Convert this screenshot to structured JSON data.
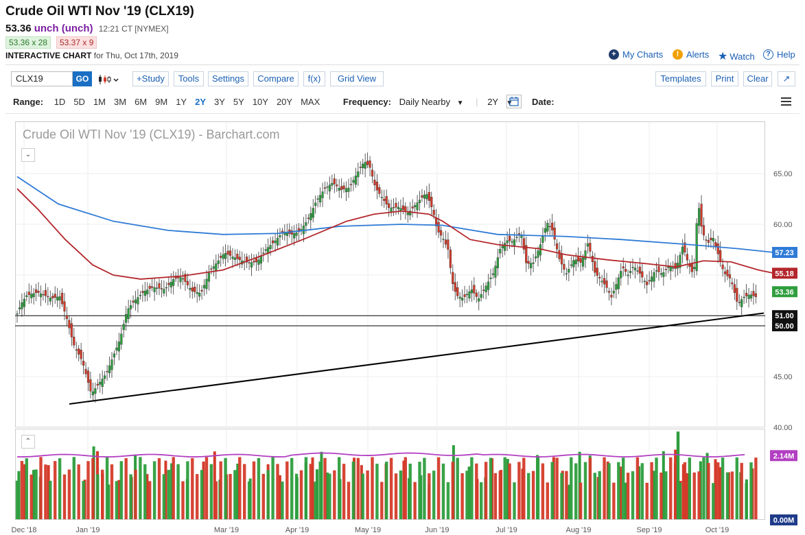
{
  "header": {
    "title": "Crude Oil WTI Nov '19 (CLX19)",
    "price": "53.36",
    "change": "unch (unch)",
    "time": "12:21 CT [NYMEX]",
    "bid": "53.36 x 28",
    "ask": "53.37 x 9",
    "chart_label": "INTERACTIVE CHART",
    "chart_date": "for Thu, Oct 17th, 2019"
  },
  "top_links": {
    "my_charts": "My Charts",
    "alerts": "Alerts",
    "watch": "Watch",
    "help": "Help"
  },
  "toolbar": {
    "symbol_value": "CLX19",
    "go": "GO",
    "study": "+Study",
    "tools": "Tools",
    "settings": "Settings",
    "compare": "Compare",
    "fx": "f(x)",
    "grid_view": "Grid View",
    "templates": "Templates",
    "print": "Print",
    "clear": "Clear"
  },
  "range_bar": {
    "range_label": "Range:",
    "ranges": [
      "1D",
      "5D",
      "1M",
      "3M",
      "6M",
      "9M",
      "1Y",
      "2Y",
      "3Y",
      "5Y",
      "10Y",
      "20Y",
      "MAX"
    ],
    "selected_range": "2Y",
    "frequency_label": "Frequency:",
    "frequency_value": "Daily Nearby",
    "period_value": "2Y",
    "date_label": "Date:"
  },
  "chart_data": {
    "type": "candlestick",
    "title": "Crude Oil WTI Nov '19 (CLX19) - Barchart.com",
    "x_ticks": [
      "Dec '18",
      "Jan '19",
      "Mar '19",
      "Apr '19",
      "May '19",
      "Jun '19",
      "Jul '19",
      "Aug '19",
      "Sep '19",
      "Oct '19"
    ],
    "y_ticks": [
      "65.00",
      "60.00",
      "55.00",
      "50.00",
      "45.00",
      "40.00"
    ],
    "ylim": [
      40,
      67.5
    ],
    "last_price": "53.36",
    "ma_short_label": "55.18",
    "ma_long_label": "57.23",
    "hlines": [
      {
        "label": "51.00",
        "value": 51.0
      },
      {
        "label": "50.00",
        "value": 50.0
      }
    ],
    "trendline": {
      "start": {
        "x": "Dec 27 2018",
        "y": 42.3
      },
      "end": {
        "x": "Oct 17 2019",
        "y": 51.25
      }
    },
    "colors": {
      "up": "#2e9e3e",
      "down": "#d43b2a",
      "ma_short": "#b3262b",
      "ma_long": "#2f7bd6",
      "volume_avg": "#b23fc2",
      "line": "#000000"
    },
    "ma_long_series": [
      [
        0,
        64.7
      ],
      [
        60,
        62.0
      ],
      [
        140,
        60.3
      ],
      [
        220,
        59.4
      ],
      [
        300,
        59.0
      ],
      [
        380,
        59.1
      ],
      [
        470,
        59.8
      ],
      [
        560,
        60.0
      ],
      [
        620,
        59.9
      ],
      [
        700,
        59.0
      ],
      [
        800,
        58.8
      ],
      [
        880,
        58.5
      ],
      [
        980,
        58.0
      ],
      [
        1050,
        57.6
      ],
      [
        1103,
        57.23
      ]
    ],
    "ma_short_series": [
      [
        0,
        63.5
      ],
      [
        30,
        61.5
      ],
      [
        70,
        58.5
      ],
      [
        110,
        56.0
      ],
      [
        140,
        55.0
      ],
      [
        180,
        54.6
      ],
      [
        240,
        54.9
      ],
      [
        300,
        55.5
      ],
      [
        360,
        57.0
      ],
      [
        420,
        58.6
      ],
      [
        480,
        60.3
      ],
      [
        520,
        61.0
      ],
      [
        560,
        61.3
      ],
      [
        600,
        61.0
      ],
      [
        620,
        60.3
      ],
      [
        660,
        58.5
      ],
      [
        700,
        58.0
      ],
      [
        760,
        57.6
      ],
      [
        800,
        57.0
      ],
      [
        860,
        56.5
      ],
      [
        920,
        56.1
      ],
      [
        960,
        55.8
      ],
      [
        1000,
        56.4
      ],
      [
        1040,
        56.3
      ],
      [
        1080,
        55.5
      ],
      [
        1103,
        55.18
      ]
    ],
    "volume": {
      "avg_label": "2.14M",
      "min_label": "0.00M",
      "avg_value": 2.14
    },
    "volume_bars": [
      {
        "pos": 0.995,
        "dir": "up",
        "vol": 1.62
      },
      {
        "pos": 0.987,
        "dir": "down",
        "vol": 1.85
      },
      {
        "pos": 0.975,
        "dir": "up",
        "vol": 1.66
      },
      {
        "pos": 0.966,
        "dir": "up",
        "vol": 1.43
      },
      {
        "pos": 0.955,
        "dir": "down",
        "vol": 1.82
      },
      {
        "pos": 0.906,
        "dir": "down",
        "vol": 1.33
      },
      {
        "pos": 0.894,
        "dir": "up",
        "vol": 2.45
      },
      {
        "pos": 0.889,
        "dir": "down",
        "vol": 2.29
      },
      {
        "pos": 0.882,
        "dir": "down",
        "vol": 1.54
      },
      {
        "pos": 0.874,
        "dir": "up",
        "vol": 1.17
      },
      {
        "pos": 0.86,
        "dir": "down",
        "vol": 1.32
      },
      {
        "pos": 0.843,
        "dir": "down",
        "vol": 1.42
      },
      {
        "pos": 0.838,
        "dir": "up",
        "vol": 2.18
      },
      {
        "pos": 0.822,
        "dir": "down",
        "vol": 1.52
      },
      {
        "pos": 0.797,
        "dir": "down",
        "vol": 1.97
      },
      {
        "pos": 0.789,
        "dir": "up",
        "vol": 1.88
      },
      {
        "pos": 0.768,
        "dir": "up",
        "vol": 1.35
      },
      {
        "pos": 0.746,
        "dir": "down",
        "vol": 1.94
      },
      {
        "pos": 0.731,
        "dir": "down",
        "vol": 2.28
      },
      {
        "pos": 0.724,
        "dir": "up",
        "vol": 1.33
      },
      {
        "pos": 0.715,
        "dir": "down",
        "vol": 1.51
      },
      {
        "pos": 0.7,
        "dir": "up",
        "vol": 1.87
      },
      {
        "pos": 0.683,
        "dir": "up",
        "vol": 1.37
      },
      {
        "pos": 0.659,
        "dir": "down",
        "vol": 1.85
      },
      {
        "pos": 0.643,
        "dir": "down",
        "vol": 1.48
      },
      {
        "pos": 0.62,
        "dir": "up",
        "vol": 1.41
      },
      {
        "pos": 0.608,
        "dir": "up",
        "vol": 1.91
      },
      {
        "pos": 0.599,
        "dir": "down",
        "vol": 2.08
      },
      {
        "pos": 0.593,
        "dir": "up",
        "vol": 1.68
      },
      {
        "pos": 0.587,
        "dir": "up",
        "vol": 2.27
      },
      {
        "pos": 0.579,
        "dir": "up",
        "vol": 1.57
      },
      {
        "pos": 0.562,
        "dir": "up",
        "vol": 1.35
      },
      {
        "pos": 0.543,
        "dir": "down",
        "vol": 2.07
      },
      {
        "pos": 0.533,
        "dir": "down",
        "vol": 1.82
      },
      {
        "pos": 0.5,
        "dir": "down",
        "vol": 1.87
      },
      {
        "pos": 0.476,
        "dir": "down",
        "vol": 1.97
      },
      {
        "pos": 0.469,
        "dir": "up",
        "vol": 1.38
      },
      {
        "pos": 0.453,
        "dir": "up",
        "vol": 1.48
      },
      {
        "pos": 0.442,
        "dir": "up",
        "vol": 1.17
      },
      {
        "pos": 0.409,
        "dir": "up",
        "vol": 2.49
      },
      {
        "pos": 0.388,
        "dir": "up",
        "vol": 1.77
      },
      {
        "pos": 0.377,
        "dir": "down",
        "vol": 1.35
      },
      {
        "pos": 0.366,
        "dir": "up",
        "vol": 1.41
      },
      {
        "pos": 0.357,
        "dir": "down",
        "vol": 2.05
      },
      {
        "pos": 0.345,
        "dir": "down",
        "vol": 1.66
      },
      {
        "pos": 0.336,
        "dir": "up",
        "vol": 2.03
      },
      {
        "pos": 0.316,
        "dir": "down",
        "vol": 1.7
      },
      {
        "pos": 0.296,
        "dir": "up",
        "vol": 2.16
      },
      {
        "pos": 0.274,
        "dir": "down",
        "vol": 2.09
      },
      {
        "pos": 0.262,
        "dir": "down",
        "vol": 1.63
      },
      {
        "pos": 0.253,
        "dir": "up",
        "vol": 1.16
      },
      {
        "pos": 0.239,
        "dir": "up",
        "vol": 2.27
      },
      {
        "pos": 0.225,
        "dir": "up",
        "vol": 2.14
      },
      {
        "pos": 0.214,
        "dir": "down",
        "vol": 1.42
      },
      {
        "pos": 0.201,
        "dir": "down",
        "vol": 1.94
      },
      {
        "pos": 0.184,
        "dir": "down",
        "vol": 1.77
      },
      {
        "pos": 0.177,
        "dir": "up",
        "vol": 1.23
      },
      {
        "pos": 0.159,
        "dir": "up",
        "vol": 1.78
      },
      {
        "pos": 0.139,
        "dir": "up",
        "vol": 1.63
      },
      {
        "pos": 0.126,
        "dir": "up",
        "vol": 2.29
      },
      {
        "pos": 0.11,
        "dir": "down",
        "vol": 2.34
      },
      {
        "pos": 0.103,
        "dir": "down",
        "vol": 1.29
      },
      {
        "pos": 0.092,
        "dir": "down",
        "vol": 1.54
      },
      {
        "pos": 0.076,
        "dir": "up",
        "vol": 1.95
      },
      {
        "pos": 0.067,
        "dir": "up",
        "vol": 2.23
      },
      {
        "pos": 0.056,
        "dir": "down",
        "vol": 2.02
      },
      {
        "pos": 0.05,
        "dir": "down",
        "vol": 1.75
      },
      {
        "pos": 0.038,
        "dir": "down",
        "vol": 1.58
      },
      {
        "pos": 0.022,
        "dir": "up",
        "vol": 1.58
      },
      {
        "pos": 0.014,
        "dir": "up",
        "vol": 1.34
      },
      {
        "pos": 0.006,
        "dir": "down",
        "vol": 1.71
      }
    ]
  }
}
